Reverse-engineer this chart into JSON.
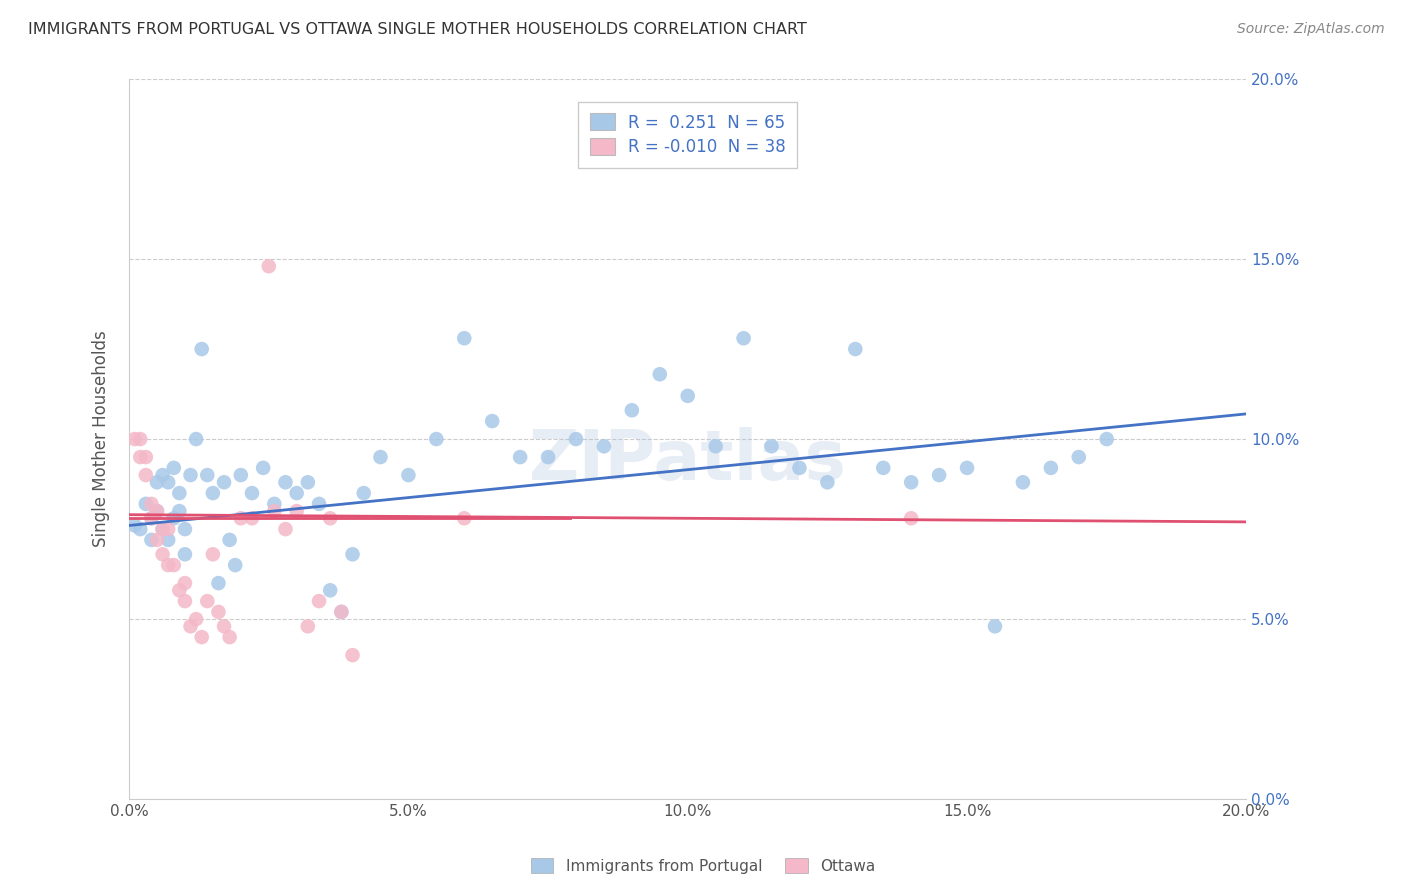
{
  "title": "IMMIGRANTS FROM PORTUGAL VS OTTAWA SINGLE MOTHER HOUSEHOLDS CORRELATION CHART",
  "source": "Source: ZipAtlas.com",
  "ylabel": "Single Mother Households",
  "legend_label1": "Immigrants from Portugal",
  "legend_label2": "Ottawa",
  "R1": 0.251,
  "N1": 65,
  "R2": -0.01,
  "N2": 38,
  "xlim": [
    0.0,
    0.2
  ],
  "ylim": [
    0.0,
    0.2
  ],
  "ytick_vals": [
    0.0,
    0.05,
    0.1,
    0.15,
    0.2
  ],
  "color1": "#a8c8e8",
  "color2": "#f4b8c8",
  "line_color1": "#4472c4",
  "line_color2": "#e05070",
  "blue_points": [
    [
      0.001,
      0.076
    ],
    [
      0.002,
      0.075
    ],
    [
      0.003,
      0.082
    ],
    [
      0.004,
      0.078
    ],
    [
      0.004,
      0.072
    ],
    [
      0.005,
      0.08
    ],
    [
      0.005,
      0.088
    ],
    [
      0.006,
      0.09
    ],
    [
      0.006,
      0.075
    ],
    [
      0.007,
      0.088
    ],
    [
      0.007,
      0.072
    ],
    [
      0.008,
      0.092
    ],
    [
      0.008,
      0.078
    ],
    [
      0.009,
      0.08
    ],
    [
      0.009,
      0.085
    ],
    [
      0.01,
      0.075
    ],
    [
      0.01,
      0.068
    ],
    [
      0.011,
      0.09
    ],
    [
      0.012,
      0.1
    ],
    [
      0.013,
      0.125
    ],
    [
      0.014,
      0.09
    ],
    [
      0.015,
      0.085
    ],
    [
      0.016,
      0.06
    ],
    [
      0.017,
      0.088
    ],
    [
      0.018,
      0.072
    ],
    [
      0.019,
      0.065
    ],
    [
      0.02,
      0.09
    ],
    [
      0.022,
      0.085
    ],
    [
      0.024,
      0.092
    ],
    [
      0.026,
      0.082
    ],
    [
      0.028,
      0.088
    ],
    [
      0.03,
      0.085
    ],
    [
      0.032,
      0.088
    ],
    [
      0.034,
      0.082
    ],
    [
      0.036,
      0.058
    ],
    [
      0.038,
      0.052
    ],
    [
      0.04,
      0.068
    ],
    [
      0.042,
      0.085
    ],
    [
      0.045,
      0.095
    ],
    [
      0.05,
      0.09
    ],
    [
      0.055,
      0.1
    ],
    [
      0.06,
      0.128
    ],
    [
      0.065,
      0.105
    ],
    [
      0.07,
      0.095
    ],
    [
      0.075,
      0.095
    ],
    [
      0.08,
      0.1
    ],
    [
      0.085,
      0.098
    ],
    [
      0.09,
      0.108
    ],
    [
      0.095,
      0.118
    ],
    [
      0.1,
      0.112
    ],
    [
      0.105,
      0.098
    ],
    [
      0.11,
      0.128
    ],
    [
      0.115,
      0.098
    ],
    [
      0.12,
      0.092
    ],
    [
      0.125,
      0.088
    ],
    [
      0.13,
      0.125
    ],
    [
      0.135,
      0.092
    ],
    [
      0.14,
      0.088
    ],
    [
      0.145,
      0.09
    ],
    [
      0.15,
      0.092
    ],
    [
      0.155,
      0.048
    ],
    [
      0.16,
      0.088
    ],
    [
      0.165,
      0.092
    ],
    [
      0.17,
      0.095
    ],
    [
      0.175,
      0.1
    ]
  ],
  "pink_points": [
    [
      0.001,
      0.1
    ],
    [
      0.002,
      0.1
    ],
    [
      0.002,
      0.095
    ],
    [
      0.003,
      0.095
    ],
    [
      0.003,
      0.09
    ],
    [
      0.004,
      0.082
    ],
    [
      0.004,
      0.078
    ],
    [
      0.005,
      0.072
    ],
    [
      0.005,
      0.08
    ],
    [
      0.006,
      0.068
    ],
    [
      0.006,
      0.075
    ],
    [
      0.007,
      0.075
    ],
    [
      0.007,
      0.065
    ],
    [
      0.008,
      0.065
    ],
    [
      0.009,
      0.058
    ],
    [
      0.01,
      0.06
    ],
    [
      0.01,
      0.055
    ],
    [
      0.011,
      0.048
    ],
    [
      0.012,
      0.05
    ],
    [
      0.013,
      0.045
    ],
    [
      0.014,
      0.055
    ],
    [
      0.015,
      0.068
    ],
    [
      0.016,
      0.052
    ],
    [
      0.017,
      0.048
    ],
    [
      0.018,
      0.045
    ],
    [
      0.02,
      0.078
    ],
    [
      0.022,
      0.078
    ],
    [
      0.025,
      0.148
    ],
    [
      0.026,
      0.08
    ],
    [
      0.028,
      0.075
    ],
    [
      0.03,
      0.08
    ],
    [
      0.032,
      0.048
    ],
    [
      0.034,
      0.055
    ],
    [
      0.036,
      0.078
    ],
    [
      0.038,
      0.052
    ],
    [
      0.04,
      0.04
    ],
    [
      0.06,
      0.078
    ],
    [
      0.14,
      0.078
    ]
  ]
}
